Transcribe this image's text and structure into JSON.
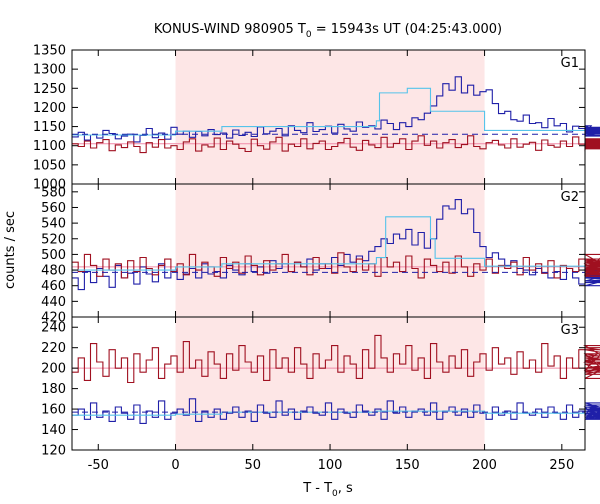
{
  "figure": {
    "title_main": "KONUS-WIND 980905 T",
    "title_sub": "0",
    "title_rest": " = 15943s UT (04:25:43.000)",
    "xlabel_main": "T - T",
    "xlabel_sub": "0",
    "xlabel_rest": ", s",
    "ylabel": "counts / sec"
  },
  "colors": {
    "shade": "#fde6e6",
    "blue_series": "#1f1fa8",
    "red_series": "#a01020",
    "fit_cyan": "#55c3ea",
    "bg_pink": "#f08aa8"
  },
  "chart_data": [
    {
      "type": "line",
      "panel": "G1",
      "title": "G1",
      "xlim": [
        -67,
        265
      ],
      "ylim": [
        1000,
        1350
      ],
      "x_ticks": [],
      "y_ticks": [
        1000,
        1050,
        1100,
        1150,
        1200,
        1250,
        1300,
        1350
      ],
      "shaded_interval": [
        0,
        200
      ],
      "x_start": -67,
      "bin_width": 4,
      "series": [
        {
          "values": [
            1123,
            1135,
            1115,
            1128,
            1120,
            1140,
            1132,
            1118,
            1125,
            1130,
            1110,
            1127,
            1145,
            1121,
            1133,
            1117,
            1148,
            1130,
            1138,
            1122,
            1137,
            1126,
            1142,
            1129,
            1133,
            1120,
            1141,
            1127,
            1135,
            1124,
            1149,
            1131,
            1138,
            1145,
            1126,
            1152,
            1140,
            1134,
            1160,
            1137,
            1142,
            1151,
            1133,
            1156,
            1144,
            1138,
            1162,
            1148,
            1152,
            1144,
            1167,
            1158,
            1142,
            1160,
            1150,
            1173,
            1168,
            1185,
            1204,
            1230,
            1262,
            1245,
            1280,
            1238,
            1258,
            1232,
            1241,
            1246,
            1210,
            1184,
            1190,
            1168,
            1164,
            1180,
            1158,
            1160,
            1147,
            1171,
            1152,
            1158,
            1136,
            1151,
            1145,
            1128,
            1152,
            1138,
            1142,
            1128,
            1140,
            1148,
            1136,
            1137,
            1145,
            1134,
            1128,
            1133,
            1144,
            1139,
            1125,
            1137,
            1146,
            1132,
            1141,
            1127
          ]
        },
        {
          "values": [
            1105,
            1098,
            1112,
            1094,
            1108,
            1116,
            1087,
            1102,
            1095,
            1110,
            1098,
            1082,
            1108,
            1096,
            1116,
            1094,
            1100,
            1090,
            1110,
            1118,
            1086,
            1102,
            1097,
            1120,
            1090,
            1112,
            1104,
            1093,
            1085,
            1117,
            1100,
            1091,
            1110,
            1122,
            1086,
            1104,
            1098,
            1118,
            1092,
            1106,
            1112,
            1090,
            1098,
            1108,
            1119,
            1096,
            1088,
            1114,
            1102,
            1095,
            1122,
            1096,
            1106,
            1118,
            1090,
            1112,
            1126,
            1101,
            1112,
            1094,
            1108,
            1116,
            1095,
            1103,
            1126,
            1098,
            1092,
            1108,
            1114,
            1102,
            1094,
            1118,
            1096,
            1104,
            1109,
            1088,
            1115,
            1101,
            1096,
            1112,
            1098,
            1123,
            1104,
            1090,
            1113,
            1100,
            1108,
            1118,
            1094,
            1106,
            1096,
            1112,
            1098,
            1104,
            1116,
            1092,
            1100,
            1109,
            1097,
            1113,
            1102,
            1095,
            1110,
            1105
          ]
        }
      ],
      "fit_bg_level": 1130,
      "fit_bg_pink_level": 1105,
      "fit_cyan_steps": [
        [
          -67,
          1128
        ],
        [
          0,
          1138
        ],
        [
          30,
          1150
        ],
        [
          130,
          1165
        ],
        [
          132,
          1238
        ],
        [
          150,
          1250
        ],
        [
          165,
          1190
        ],
        [
          200,
          1140
        ],
        [
          265,
          1140
        ]
      ]
    },
    {
      "type": "line",
      "panel": "G2",
      "title": "G2",
      "xlim": [
        -67,
        265
      ],
      "ylim": [
        420,
        590
      ],
      "x_ticks": [],
      "y_ticks": [
        420,
        440,
        460,
        480,
        500,
        520,
        540,
        560,
        580
      ],
      "shaded_interval": [
        0,
        200
      ],
      "x_start": -67,
      "bin_width": 4,
      "series": [
        {
          "values": [
            470,
            455,
            478,
            464,
            482,
            472,
            458,
            486,
            470,
            476,
            462,
            484,
            475,
            465,
            488,
            470,
            480,
            468,
            475,
            482,
            470,
            488,
            475,
            478,
            470,
            486,
            480,
            474,
            488,
            478,
            484,
            476,
            492,
            482,
            488,
            478,
            490,
            484,
            494,
            480,
            488,
            482,
            496,
            486,
            500,
            490,
            498,
            492,
            504,
            510,
            520,
            514,
            526,
            520,
            532,
            512,
            528,
            508,
            520,
            545,
            562,
            558,
            570,
            552,
            558,
            528,
            510,
            496,
            502,
            494,
            486,
            492,
            482,
            480,
            474,
            482,
            476,
            470,
            478,
            468,
            482,
            470,
            462,
            476,
            472,
            480,
            466,
            474,
            470,
            482,
            460,
            476,
            470,
            478,
            484,
            470,
            464,
            472,
            480,
            466,
            474,
            482,
            470,
            476
          ]
        },
        {
          "values": [
            490,
            478,
            500,
            486,
            472,
            494,
            480,
            488,
            470,
            492,
            478,
            496,
            482,
            474,
            486,
            494,
            478,
            488,
            474,
            500,
            480,
            490,
            484,
            472,
            496,
            482,
            490,
            476,
            498,
            486,
            474,
            492,
            480,
            488,
            500,
            478,
            490,
            484,
            474,
            496,
            482,
            488,
            476,
            502,
            484,
            478,
            494,
            480,
            488,
            472,
            496,
            484,
            490,
            478,
            498,
            482,
            470,
            494,
            486,
            478,
            490,
            476,
            498,
            484,
            472,
            488,
            480,
            494,
            476,
            486,
            482,
            490,
            474,
            496,
            480,
            488,
            476,
            492,
            470,
            486,
            482,
            478,
            494,
            480,
            488,
            474,
            500,
            482,
            476,
            490,
            484,
            472,
            494,
            480,
            486,
            478,
            492,
            476,
            488,
            482,
            494,
            474,
            486,
            480
          ]
        }
      ],
      "fit_bg_level": 477,
      "fit_bg_pink_level": 484,
      "fit_cyan_steps": [
        [
          -67,
          480
        ],
        [
          0,
          484
        ],
        [
          30,
          488
        ],
        [
          130,
          496
        ],
        [
          136,
          548
        ],
        [
          165,
          520
        ],
        [
          168,
          495
        ],
        [
          200,
          485
        ],
        [
          265,
          480
        ]
      ]
    },
    {
      "type": "line",
      "panel": "G3",
      "title": "G3",
      "xlim": [
        -67,
        265
      ],
      "ylim": [
        120,
        250
      ],
      "x_ticks": [
        -50,
        0,
        50,
        100,
        150,
        200,
        250
      ],
      "y_ticks": [
        120,
        140,
        160,
        180,
        200,
        220,
        240
      ],
      "shaded_interval": [
        0,
        200
      ],
      "x_start": -67,
      "bin_width": 4,
      "series": [
        {
          "values": [
            154,
            160,
            150,
            166,
            152,
            158,
            148,
            162,
            156,
            150,
            164,
            146,
            158,
            152,
            168,
            150,
            156,
            160,
            154,
            170,
            148,
            158,
            152,
            160,
            150,
            156,
            162,
            152,
            158,
            148,
            164,
            156,
            152,
            168,
            154,
            160,
            150,
            158,
            162,
            156,
            154,
            166,
            150,
            160,
            156,
            152,
            164,
            158,
            154,
            160,
            150,
            168,
            156,
            162,
            152,
            158,
            160,
            154,
            166,
            150,
            158,
            162,
            154,
            160,
            152,
            164,
            156,
            150,
            162,
            154,
            158,
            150,
            166,
            156,
            154,
            160,
            152,
            162,
            156,
            150,
            164,
            152,
            158,
            154,
            162,
            150,
            160,
            156,
            152,
            166,
            154,
            158,
            150,
            162,
            156,
            152,
            160,
            154,
            164,
            150,
            158,
            156,
            160,
            154
          ]
        },
        {
          "values": [
            196,
            210,
            188,
            224,
            206,
            192,
            218,
            200,
            210,
            186,
            214,
            196,
            208,
            220,
            190,
            204,
            212,
            196,
            226,
            200,
            208,
            192,
            216,
            204,
            190,
            214,
            198,
            222,
            206,
            196,
            212,
            188,
            218,
            200,
            210,
            196,
            220,
            204,
            190,
            214,
            200,
            208,
            222,
            196,
            212,
            204,
            190,
            218,
            200,
            232,
            210,
            196,
            214,
            204,
            222,
            198,
            210,
            190,
            224,
            206,
            196,
            212,
            200,
            218,
            192,
            206,
            214,
            198,
            220,
            204,
            210,
            194,
            216,
            200,
            208,
            196,
            224,
            202,
            212,
            190,
            210,
            200,
            218,
            196,
            206,
            214,
            198,
            222,
            204,
            190,
            212,
            200,
            208,
            196,
            218,
            206,
            194,
            214,
            200,
            210,
            196,
            220,
            204,
            208
          ]
        }
      ],
      "fit_bg_level": 157,
      "fit_bg_pink_level": 200,
      "fit_cyan_steps": [
        [
          -67,
          154
        ],
        [
          0,
          155
        ],
        [
          30,
          157
        ],
        [
          130,
          158
        ],
        [
          200,
          156
        ],
        [
          265,
          156
        ]
      ]
    }
  ]
}
